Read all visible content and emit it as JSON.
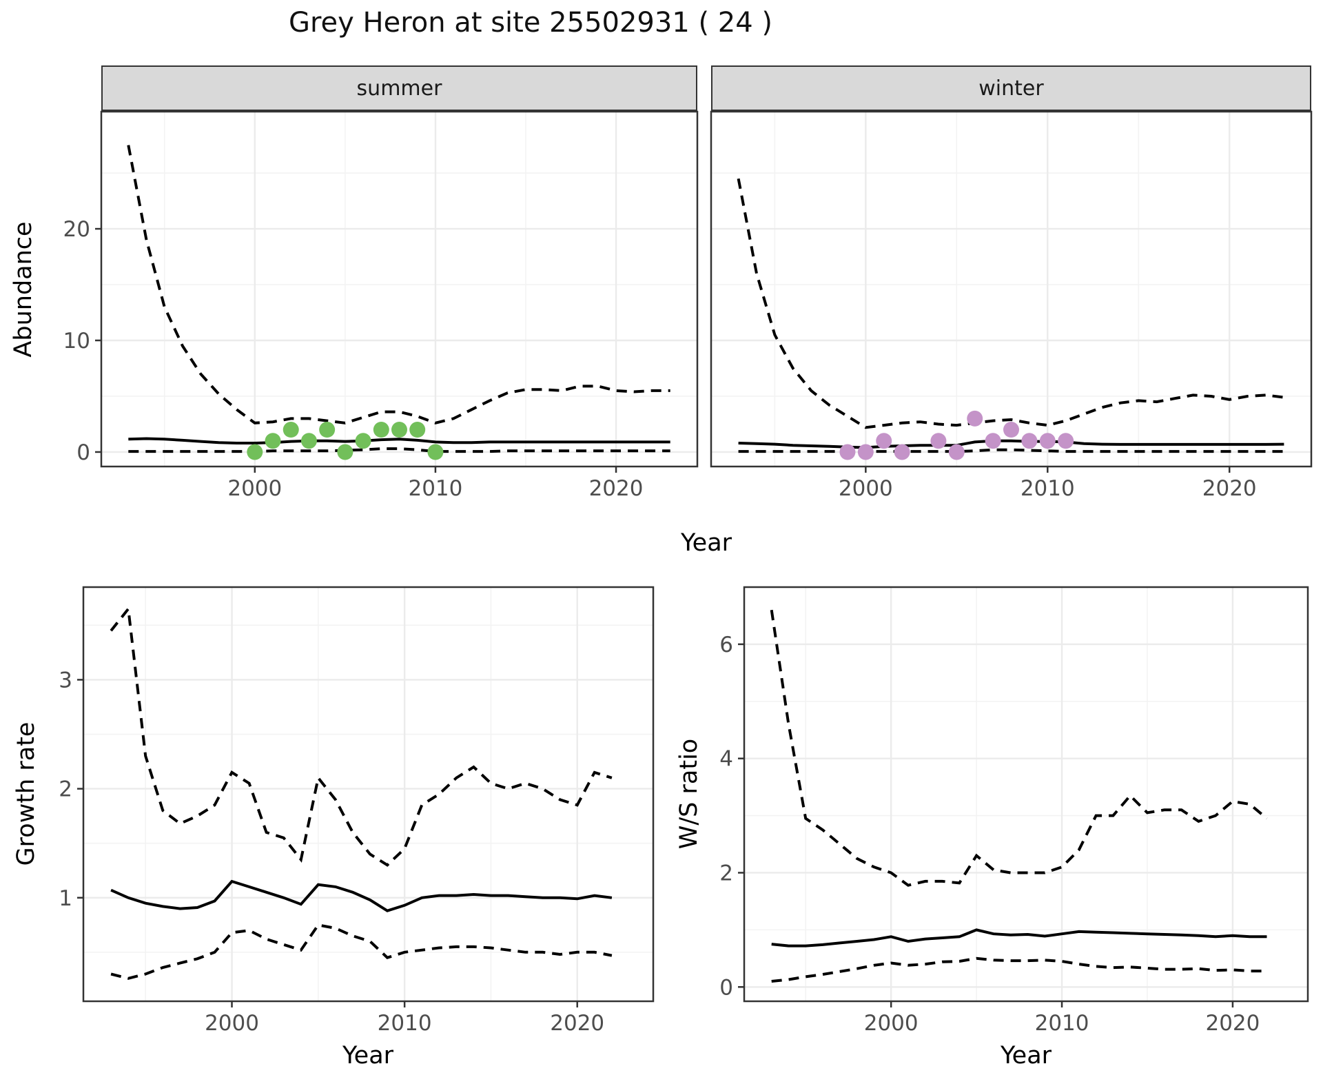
{
  "title": "Grey Heron at site 25502931 ( 24 )",
  "facets": [
    {
      "label": "summer"
    },
    {
      "label": "winter"
    }
  ],
  "axes": {
    "top": {
      "ylabel": "Abundance",
      "xlabel": "Year"
    },
    "growth": {
      "ylabel": "Growth rate",
      "xlabel": "Year"
    },
    "ws": {
      "ylabel": "W/S ratio",
      "xlabel": "Year"
    }
  },
  "colors": {
    "summer_point": "#72BF5A",
    "winter_point": "#C493C8",
    "line": "#000000",
    "strip_fill": "#D9D9D9",
    "grid_major": "#EBEBEB",
    "grid_minor": "#F3F3F3",
    "axis_text": "#4D4D4D",
    "panel_border": "#333333"
  },
  "chart_data": [
    {
      "id": "abundance_summer",
      "type": "line",
      "facet": "summer",
      "xlabel": "Year",
      "ylabel": "Abundance",
      "xlim": [
        1991.5,
        2024.5
      ],
      "ylim": [
        -1.3,
        30.5
      ],
      "xticks": [
        2000,
        2010,
        2020
      ],
      "yticks": [
        0,
        10,
        20
      ],
      "xticks_minor": [
        1995,
        2005,
        2015
      ],
      "yticks_minor": [
        5,
        15,
        25
      ],
      "grid": true,
      "years": [
        1993,
        1994,
        1995,
        1996,
        1997,
        1998,
        1999,
        2000,
        2001,
        2002,
        2003,
        2004,
        2005,
        2006,
        2007,
        2008,
        2009,
        2010,
        2011,
        2012,
        2013,
        2014,
        2015,
        2016,
        2017,
        2018,
        2019,
        2020,
        2021,
        2022,
        2023
      ],
      "series": [
        {
          "name": "upper_95ci",
          "style": "dashed",
          "values": [
            27.5,
            19,
            13,
            9.5,
            7,
            5.2,
            3.8,
            2.6,
            2.7,
            3.0,
            3.0,
            2.8,
            2.6,
            3.1,
            3.6,
            3.6,
            3.2,
            2.6,
            3.0,
            3.8,
            4.6,
            5.3,
            5.6,
            5.6,
            5.5,
            5.9,
            5.9,
            5.5,
            5.4,
            5.5,
            5.5
          ]
        },
        {
          "name": "median",
          "style": "solid",
          "values": [
            1.15,
            1.2,
            1.15,
            1.05,
            0.95,
            0.85,
            0.8,
            0.8,
            0.85,
            0.95,
            1.0,
            1.0,
            0.95,
            1.0,
            1.1,
            1.15,
            1.05,
            0.9,
            0.85,
            0.85,
            0.9,
            0.9,
            0.9,
            0.9,
            0.9,
            0.9,
            0.9,
            0.9,
            0.9,
            0.9,
            0.9
          ]
        },
        {
          "name": "lower_95ci",
          "style": "dashed",
          "values": [
            0.05,
            0.05,
            0.05,
            0.05,
            0.05,
            0.05,
            0.05,
            0.05,
            0.1,
            0.1,
            0.1,
            0.1,
            0.15,
            0.2,
            0.3,
            0.3,
            0.2,
            0.05,
            0.05,
            0.05,
            0.05,
            0.1,
            0.1,
            0.1,
            0.1,
            0.1,
            0.1,
            0.1,
            0.1,
            0.1,
            0.1
          ]
        }
      ],
      "points": {
        "name": "observed-counts-summer",
        "color": "#72BF5A",
        "x": [
          2000,
          2001,
          2002,
          2003,
          2004,
          2005,
          2006,
          2007,
          2008,
          2009,
          2010
        ],
        "y": [
          0,
          1,
          2,
          1,
          2,
          0,
          1,
          2,
          2,
          2,
          0
        ]
      }
    },
    {
      "id": "abundance_winter",
      "type": "line",
      "facet": "winter",
      "xlabel": "Year",
      "ylabel": "Abundance",
      "xlim": [
        1991.5,
        2024.5
      ],
      "ylim": [
        -1.3,
        30.5
      ],
      "xticks": [
        2000,
        2010,
        2020
      ],
      "yticks": [
        0,
        10,
        20
      ],
      "xticks_minor": [
        1995,
        2005,
        2015
      ],
      "yticks_minor": [
        5,
        15,
        25
      ],
      "grid": true,
      "years": [
        1993,
        1994,
        1995,
        1996,
        1997,
        1998,
        1999,
        2000,
        2001,
        2002,
        2003,
        2004,
        2005,
        2006,
        2007,
        2008,
        2009,
        2010,
        2011,
        2012,
        2013,
        2014,
        2015,
        2016,
        2017,
        2018,
        2019,
        2020,
        2021,
        2022,
        2023
      ],
      "series": [
        {
          "name": "upper_95ci",
          "style": "dashed",
          "values": [
            24.5,
            16,
            10.5,
            7.5,
            5.5,
            4.2,
            3.2,
            2.2,
            2.4,
            2.6,
            2.7,
            2.5,
            2.4,
            2.6,
            2.8,
            2.9,
            2.6,
            2.4,
            2.8,
            3.4,
            4.0,
            4.4,
            4.6,
            4.5,
            4.8,
            5.1,
            5.0,
            4.7,
            5.0,
            5.1,
            4.9
          ]
        },
        {
          "name": "median",
          "style": "solid",
          "values": [
            0.8,
            0.75,
            0.7,
            0.6,
            0.55,
            0.5,
            0.45,
            0.4,
            0.5,
            0.55,
            0.6,
            0.6,
            0.6,
            0.9,
            1.0,
            1.0,
            0.95,
            0.95,
            0.9,
            0.75,
            0.7,
            0.68,
            0.68,
            0.68,
            0.68,
            0.68,
            0.68,
            0.68,
            0.68,
            0.68,
            0.7
          ]
        },
        {
          "name": "lower_95ci",
          "style": "dashed",
          "values": [
            0.05,
            0.05,
            0.05,
            0.05,
            0.05,
            0.05,
            0.05,
            0.05,
            0.05,
            0.05,
            0.05,
            0.05,
            0.05,
            0.1,
            0.2,
            0.2,
            0.15,
            0.1,
            0.05,
            0.05,
            0.05,
            0.05,
            0.05,
            0.05,
            0.05,
            0.05,
            0.05,
            0.05,
            0.05,
            0.05,
            0.05
          ]
        }
      ],
      "points": {
        "name": "observed-counts-winter",
        "color": "#C493C8",
        "x": [
          1999,
          2000,
          2001,
          2002,
          2004,
          2005,
          2006,
          2007,
          2008,
          2009,
          2010,
          2011
        ],
        "y": [
          0,
          0,
          1,
          0,
          1,
          0,
          3,
          1,
          2,
          1,
          1,
          1
        ]
      }
    },
    {
      "id": "growth_rate",
      "type": "line",
      "xlabel": "Year",
      "ylabel": "Growth rate",
      "xlim": [
        1991.4,
        2024.4
      ],
      "ylim": [
        0.05,
        3.85
      ],
      "xticks": [
        2000,
        2010,
        2020
      ],
      "yticks": [
        1,
        2,
        3
      ],
      "xticks_minor": [
        1995,
        2005,
        2015
      ],
      "yticks_minor": [
        0.5,
        1.5,
        2.5,
        3.5
      ],
      "grid": true,
      "years": [
        1993,
        1994,
        1995,
        1996,
        1997,
        1998,
        1999,
        2000,
        2001,
        2002,
        2003,
        2004,
        2005,
        2006,
        2007,
        2008,
        2009,
        2010,
        2011,
        2012,
        2013,
        2014,
        2015,
        2016,
        2017,
        2018,
        2019,
        2020,
        2021,
        2022
      ],
      "series": [
        {
          "name": "upper_95ci",
          "style": "dashed",
          "values": [
            3.45,
            3.65,
            2.3,
            1.8,
            1.68,
            1.75,
            1.85,
            2.15,
            2.05,
            1.6,
            1.55,
            1.35,
            2.1,
            1.9,
            1.6,
            1.4,
            1.3,
            1.45,
            1.85,
            1.95,
            2.1,
            2.2,
            2.05,
            2.0,
            2.05,
            2.0,
            1.9,
            1.85,
            2.15,
            2.1
          ]
        },
        {
          "name": "median",
          "style": "solid",
          "values": [
            1.07,
            1.0,
            0.95,
            0.92,
            0.9,
            0.91,
            0.97,
            1.15,
            1.1,
            1.05,
            1.0,
            0.94,
            1.12,
            1.1,
            1.05,
            0.98,
            0.88,
            0.93,
            1.0,
            1.02,
            1.02,
            1.03,
            1.02,
            1.02,
            1.01,
            1.0,
            1.0,
            0.99,
            1.02,
            1.0
          ]
        },
        {
          "name": "lower_95ci",
          "style": "dashed",
          "values": [
            0.3,
            0.26,
            0.3,
            0.36,
            0.4,
            0.44,
            0.5,
            0.68,
            0.7,
            0.62,
            0.57,
            0.52,
            0.75,
            0.72,
            0.65,
            0.6,
            0.45,
            0.5,
            0.52,
            0.54,
            0.55,
            0.55,
            0.54,
            0.52,
            0.5,
            0.5,
            0.48,
            0.5,
            0.5,
            0.47
          ]
        }
      ]
    },
    {
      "id": "ws_ratio",
      "type": "line",
      "xlabel": "Year",
      "ylabel": "W/S ratio",
      "xlim": [
        1991.4,
        2024.4
      ],
      "ylim": [
        -0.25,
        7.0
      ],
      "xticks": [
        2000,
        2010,
        2020
      ],
      "yticks": [
        0,
        2,
        4,
        6
      ],
      "xticks_minor": [
        1995,
        2005,
        2015
      ],
      "yticks_minor": [
        1,
        3,
        5
      ],
      "grid": true,
      "years": [
        1993,
        1994,
        1995,
        1996,
        1997,
        1998,
        1999,
        2000,
        2001,
        2002,
        2003,
        2004,
        2005,
        2006,
        2007,
        2008,
        2009,
        2010,
        2011,
        2012,
        2013,
        2014,
        2015,
        2016,
        2017,
        2018,
        2019,
        2020,
        2021,
        2022
      ],
      "series": [
        {
          "name": "upper_95ci",
          "style": "dashed",
          "values": [
            6.6,
            4.6,
            2.95,
            2.75,
            2.5,
            2.25,
            2.1,
            2.0,
            1.78,
            1.85,
            1.85,
            1.82,
            2.3,
            2.05,
            2.0,
            2.0,
            2.0,
            2.1,
            2.4,
            3.0,
            3.0,
            3.35,
            3.05,
            3.1,
            3.1,
            2.9,
            3.0,
            3.25,
            3.2,
            2.95
          ]
        },
        {
          "name": "median",
          "style": "solid",
          "values": [
            0.75,
            0.72,
            0.72,
            0.74,
            0.77,
            0.8,
            0.83,
            0.88,
            0.8,
            0.84,
            0.86,
            0.88,
            1.0,
            0.93,
            0.91,
            0.92,
            0.89,
            0.93,
            0.97,
            0.96,
            0.95,
            0.94,
            0.93,
            0.92,
            0.91,
            0.9,
            0.88,
            0.9,
            0.88,
            0.88
          ]
        },
        {
          "name": "lower_95ci",
          "style": "dashed",
          "values": [
            0.1,
            0.13,
            0.18,
            0.22,
            0.27,
            0.32,
            0.38,
            0.42,
            0.38,
            0.4,
            0.44,
            0.45,
            0.5,
            0.47,
            0.46,
            0.46,
            0.47,
            0.45,
            0.4,
            0.36,
            0.34,
            0.35,
            0.33,
            0.31,
            0.31,
            0.32,
            0.29,
            0.3,
            0.28,
            0.28
          ]
        }
      ]
    }
  ]
}
